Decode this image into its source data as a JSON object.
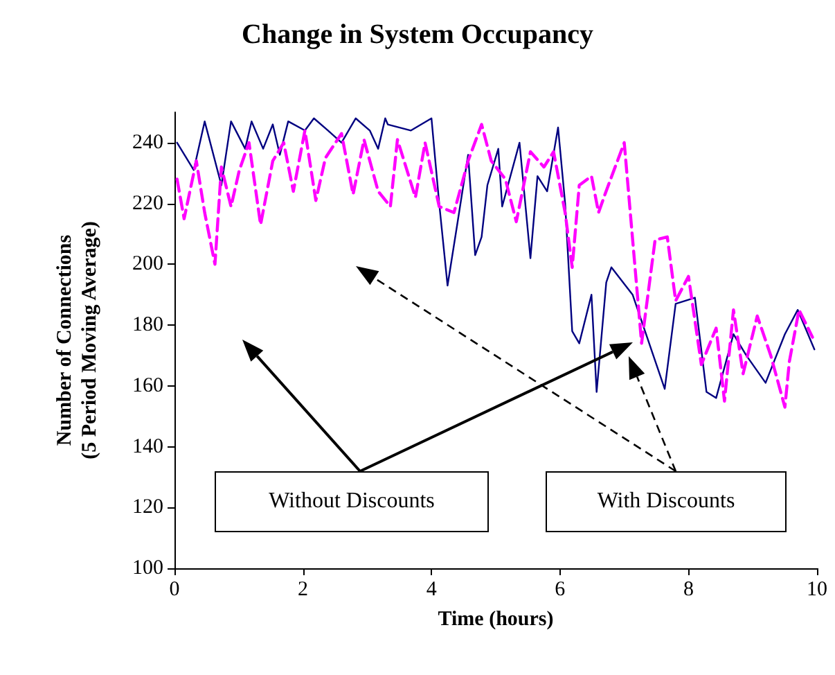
{
  "chart_data": {
    "type": "line",
    "title": "Change in System Occupancy",
    "xlabel": "Time (hours)",
    "ylabel": "Number of Connections\n(5 Period Moving Average)",
    "xlim": [
      0,
      10
    ],
    "xticks": [
      0,
      2,
      4,
      6,
      8,
      10
    ],
    "ylim": [
      100,
      250
    ],
    "yticks": [
      100,
      120,
      140,
      160,
      180,
      200,
      220,
      240
    ],
    "grid": false,
    "marker": "none",
    "annotations": [
      "Without Discounts",
      "With Discounts"
    ],
    "series": [
      {
        "color": "#000080",
        "line_style": "solid",
        "x": [
          0.04,
          0.3,
          0.47,
          0.73,
          0.88,
          1.1,
          1.2,
          1.38,
          1.53,
          1.64,
          1.77,
          2.03,
          2.17,
          2.39,
          2.6,
          2.82,
          3.04,
          3.17,
          3.28,
          3.32,
          3.68,
          4.0,
          4.12,
          4.25,
          4.4,
          4.57,
          4.68,
          4.78,
          4.87,
          5.04,
          5.1,
          5.37,
          5.54,
          5.65,
          5.8,
          5.97,
          6.08,
          6.19,
          6.3,
          6.49,
          6.57,
          6.72,
          6.8,
          7.13,
          7.63,
          7.8,
          8.1,
          8.28,
          8.43,
          8.7,
          8.9,
          9.2,
          9.5,
          9.7,
          9.96
        ],
        "values": [
          240,
          231,
          247,
          226,
          247,
          238,
          247,
          238,
          246,
          236,
          247,
          244,
          248,
          244,
          240,
          248,
          244,
          238,
          248,
          246,
          244,
          248,
          220,
          193,
          213,
          236,
          203,
          209,
          226,
          238,
          219,
          240,
          202,
          229,
          224,
          245,
          220,
          178,
          174,
          190,
          158,
          194,
          199,
          190,
          159,
          187,
          189,
          158,
          156,
          177,
          170,
          161,
          177,
          185,
          172
        ]
      },
      {
        "color": "#ff00ff",
        "line_style": "dashed",
        "x": [
          0.04,
          0.15,
          0.34,
          0.47,
          0.63,
          0.73,
          0.88,
          1.01,
          1.16,
          1.34,
          1.53,
          1.7,
          1.85,
          2.03,
          2.2,
          2.35,
          2.6,
          2.78,
          2.95,
          3.17,
          3.36,
          3.47,
          3.75,
          3.9,
          4.12,
          4.35,
          4.57,
          4.78,
          4.93,
          5.15,
          5.32,
          5.54,
          5.75,
          5.9,
          6.08,
          6.19,
          6.3,
          6.49,
          6.6,
          6.7,
          7.0,
          7.27,
          7.48,
          7.67,
          7.8,
          8.0,
          8.2,
          8.43,
          8.56,
          8.7,
          8.85,
          9.07,
          9.28,
          9.5,
          9.57,
          9.72,
          9.93
        ],
        "values": [
          228,
          215,
          234,
          217,
          200,
          232,
          219,
          231,
          240,
          213,
          234,
          240,
          224,
          244,
          221,
          235,
          243,
          223,
          241,
          224,
          219,
          241,
          222,
          240,
          219,
          217,
          234,
          246,
          234,
          228,
          214,
          237,
          232,
          237,
          217,
          199,
          226,
          229,
          217,
          223,
          240,
          174,
          208,
          209,
          188,
          196,
          167,
          179,
          155,
          185,
          164,
          183,
          170,
          153,
          168,
          185,
          176
        ]
      }
    ]
  }
}
